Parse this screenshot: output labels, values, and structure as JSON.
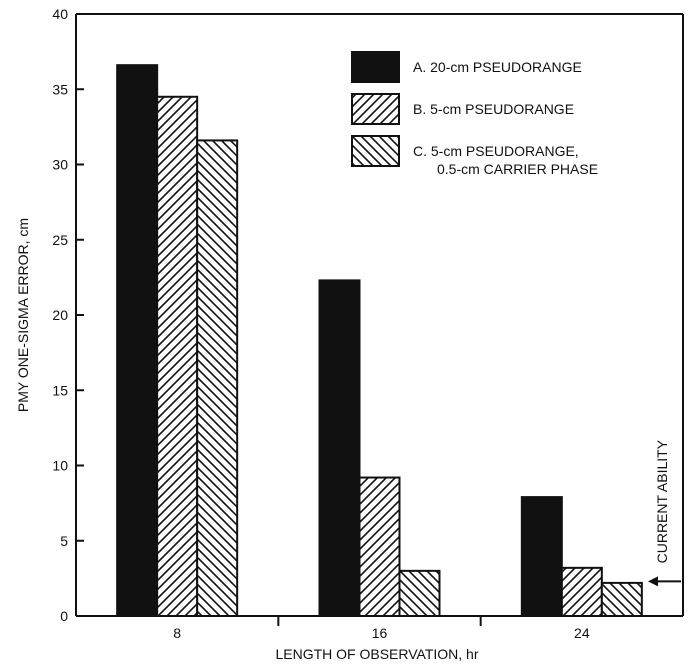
{
  "chart_data": {
    "type": "bar",
    "title": "",
    "xlabel": "LENGTH OF OBSERVATION, hr",
    "ylabel": "PMY ONE-SIGMA ERROR, cm",
    "ylim": [
      0,
      40
    ],
    "yticks": [
      0,
      5,
      10,
      15,
      20,
      25,
      30,
      35,
      40
    ],
    "categories": [
      "8",
      "16",
      "24"
    ],
    "series": [
      {
        "legend_lines": [
          "A.  20-cm PSEUDORANGE"
        ],
        "pattern": "solid",
        "values": [
          36.6,
          22.3,
          7.9
        ]
      },
      {
        "legend_lines": [
          "B.  5-cm PSEUDORANGE"
        ],
        "pattern": "hatch-forward",
        "values": [
          34.5,
          9.2,
          3.2
        ]
      },
      {
        "legend_lines": [
          "C.  5-cm PSEUDORANGE,",
          "0.5-cm CARRIER PHASE"
        ],
        "pattern": "hatch-back",
        "values": [
          31.6,
          3.0,
          2.2
        ]
      }
    ],
    "reference_marker": {
      "label": "CURRENT ABILITY",
      "value": 2.3
    },
    "grid": false,
    "legend_position": "top-right",
    "colors": {
      "ink": "#111111",
      "background": "#ffffff"
    }
  }
}
